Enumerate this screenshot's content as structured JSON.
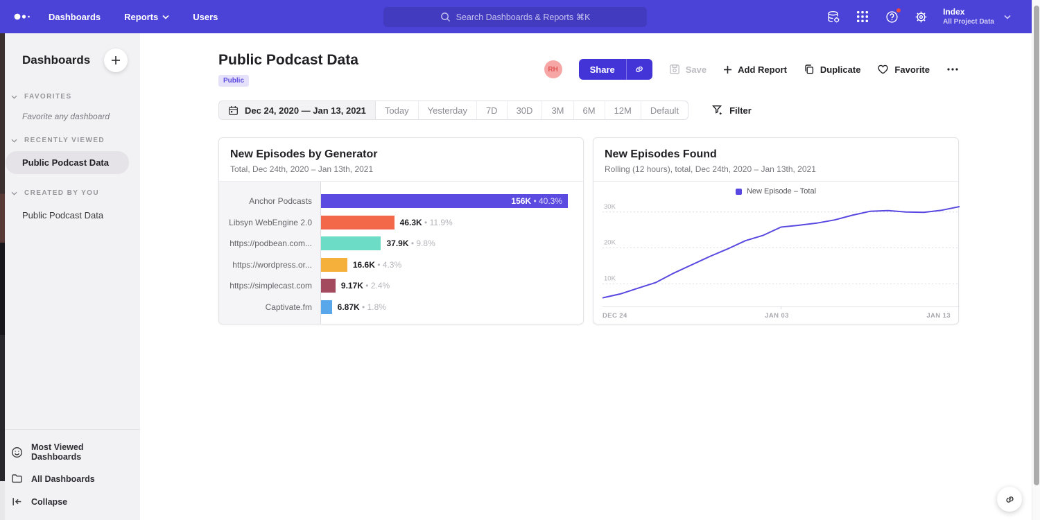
{
  "nav": {
    "items": [
      {
        "label": "Dashboards",
        "chevron": false
      },
      {
        "label": "Reports",
        "chevron": true
      },
      {
        "label": "Users",
        "chevron": false
      }
    ],
    "search_placeholder": "Search Dashboards & Reports ⌘K",
    "project": {
      "name": "Index",
      "subtitle": "All Project Data"
    },
    "colors": {
      "bg": "#4b42d8"
    }
  },
  "sidebar": {
    "title": "Dashboards",
    "sections": [
      {
        "label": "FAVORITES",
        "empty_text": "Favorite any dashboard"
      },
      {
        "label": "RECENTLY VIEWED",
        "items": [
          {
            "label": "Public Podcast Data",
            "selected": true
          }
        ]
      },
      {
        "label": "CREATED BY YOU",
        "items": [
          {
            "label": "Public Podcast Data",
            "selected": false
          }
        ]
      }
    ],
    "footer": [
      {
        "label": "Most Viewed Dashboards",
        "icon": "smiley-icon"
      },
      {
        "label": "All Dashboards",
        "icon": "folder-icon"
      },
      {
        "label": "Collapse",
        "icon": "collapse-icon"
      }
    ]
  },
  "header": {
    "title": "Public Podcast Data",
    "badge": "Public",
    "avatar_initials": "RH",
    "share_label": "Share",
    "save_label": "Save",
    "add_report_label": "Add Report",
    "duplicate_label": "Duplicate",
    "favorite_label": "Favorite"
  },
  "toolbar": {
    "date_range": "Dec 24, 2020 — Jan 13, 2021",
    "presets": [
      "Today",
      "Yesterday",
      "7D",
      "30D",
      "3M",
      "6M",
      "12M",
      "Default"
    ],
    "filter_label": "Filter"
  },
  "chart_data": [
    {
      "type": "bar",
      "orientation": "horizontal",
      "title": "New Episodes by Generator",
      "subtitle": "Total, Dec 24th, 2020 – Jan 13th, 2021",
      "max_value": 156000,
      "rows": [
        {
          "category": "Anchor Podcasts",
          "value": 156000,
          "value_label": "156K",
          "pct": "40.3%",
          "color": "#5b4be0",
          "label_inside": true
        },
        {
          "category": "Libsyn WebEngine 2.0",
          "value": 46300,
          "value_label": "46.3K",
          "pct": "11.9%",
          "color": "#f4684a",
          "label_inside": false
        },
        {
          "category": "https://podbean.com...",
          "value": 37900,
          "value_label": "37.9K",
          "pct": "9.8%",
          "color": "#6ddcc6",
          "label_inside": false
        },
        {
          "category": "https://wordpress.or...",
          "value": 16600,
          "value_label": "16.6K",
          "pct": "4.3%",
          "color": "#f5b03c",
          "label_inside": false
        },
        {
          "category": "https://simplecast.com",
          "value": 9170,
          "value_label": "9.17K",
          "pct": "2.4%",
          "color": "#a44a5e",
          "label_inside": false
        },
        {
          "category": "Captivate.fm",
          "value": 6870,
          "value_label": "6.87K",
          "pct": "1.8%",
          "color": "#57a7ea",
          "label_inside": false
        }
      ]
    },
    {
      "type": "line",
      "title": "New Episodes Found",
      "subtitle": "Rolling (12 hours), total, Dec 24th, 2020 – Jan 13th, 2021",
      "legend": "New Episode – Total",
      "line_color": "#5847e0",
      "x_ticks": [
        "DEC 24",
        "JAN 03",
        "JAN 13"
      ],
      "y_ticks": [
        {
          "value": 10000,
          "label": "10K"
        },
        {
          "value": 20000,
          "label": "20K"
        },
        {
          "value": 30000,
          "label": "30K"
        }
      ],
      "ylim": [
        3700,
        34200
      ],
      "values": [
        6100,
        7200,
        8800,
        10400,
        13000,
        15300,
        17600,
        19700,
        22000,
        23500,
        25800,
        26300,
        26900,
        27800,
        29100,
        30200,
        30400,
        30000,
        29900,
        30500,
        31500
      ]
    }
  ],
  "floating_button": {
    "icon": "link"
  }
}
